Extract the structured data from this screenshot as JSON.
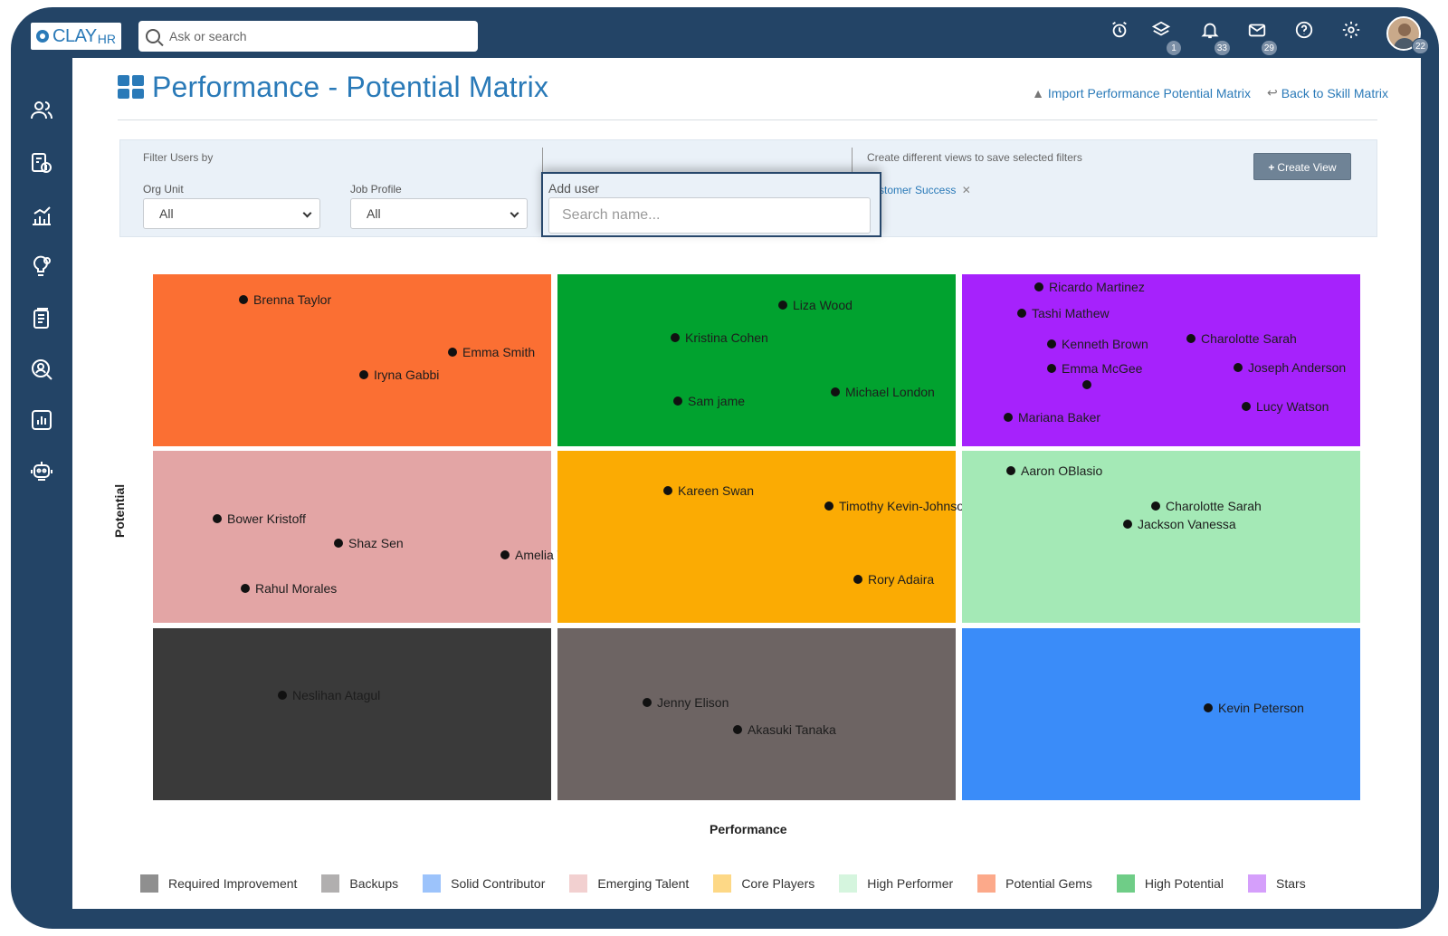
{
  "app": {
    "logo_text": "CLAY",
    "logo_sub": "HR",
    "search_placeholder": "Ask or search"
  },
  "top_icons": [
    {
      "name": "alarm-clock-icon",
      "badge": ""
    },
    {
      "name": "layers-icon",
      "badge": "1"
    },
    {
      "name": "bell-icon",
      "badge": "33"
    },
    {
      "name": "mail-icon",
      "badge": "29"
    },
    {
      "name": "help-icon",
      "badge": ""
    },
    {
      "name": "gear-icon",
      "badge": ""
    },
    {
      "name": "avatar",
      "badge": "22"
    }
  ],
  "sidebar_icons": [
    "users-icon",
    "money-report-icon",
    "bar-chart-icon",
    "lightbulb-gear-icon",
    "document-icon",
    "search-user-icon",
    "analytics-icon",
    "robot-icon"
  ],
  "page": {
    "title": "Performance - Potential Matrix",
    "import_link": "Import Performance Potential Matrix",
    "back_link": "Back to Skill Matrix"
  },
  "filters": {
    "heading": "Filter Users by",
    "org_unit_label": "Org Unit",
    "org_unit_value": "All",
    "job_profile_label": "Job Profile",
    "job_profile_value": "All",
    "views_text": "Create different views to save selected filters",
    "chip_text": "stomer Success",
    "create_view_label": "Create View"
  },
  "add_user": {
    "label": "Add user",
    "placeholder": "Search name..."
  },
  "axes": {
    "x": "Performance",
    "y": "Potential"
  },
  "matrix": {
    "cells": [
      {
        "id": "potential-gems",
        "color": "#fb6f33",
        "people": [
          "Brenna Taylor",
          "Emma Smith",
          "Iryna Gabbi"
        ]
      },
      {
        "id": "high-potential",
        "color": "#01a22f",
        "people": [
          "Liza Wood",
          "Kristina Cohen",
          "Sam jame",
          "Michael London"
        ]
      },
      {
        "id": "stars",
        "color": "#a622fc",
        "people": [
          "Ricardo Martinez",
          "Tashi Mathew",
          "Kenneth Brown",
          "Charolotte Sarah",
          "Emma McGee",
          "Joseph Anderson",
          "Lucy Watson",
          "Mariana Baker"
        ]
      },
      {
        "id": "emerging-talent",
        "color": "#e3a5a5",
        "people": [
          "Bower Kristoff",
          "Shaz Sen",
          "Amelia Wiggins",
          "Rahul Morales"
        ]
      },
      {
        "id": "core-players",
        "color": "#fbab03",
        "people": [
          "Kareen Swan",
          "Timothy Kevin-Johnson",
          "Rory Adaira"
        ]
      },
      {
        "id": "high-performer",
        "color": "#a4e9b6",
        "people": [
          "Aaron OBlasio",
          "Charolotte Sarah",
          "Jackson Vanessa"
        ]
      },
      {
        "id": "required-improvement",
        "color": "#3a3a3a",
        "people": [
          "Neslihan Atagul"
        ]
      },
      {
        "id": "backups",
        "color": "#6d6463",
        "people": [
          "Jenny Elison",
          "Akasuki Tanaka"
        ]
      },
      {
        "id": "solid-contributor",
        "color": "#3a8cf9",
        "people": [
          "Kevin Peterson"
        ]
      }
    ]
  },
  "legend": [
    {
      "label": "Required Improvement",
      "color": "#8f8f8f"
    },
    {
      "label": "Backups",
      "color": "#b1afaf"
    },
    {
      "label": "Solid Contributor",
      "color": "#9cc3fb"
    },
    {
      "label": "Emerging Talent",
      "color": "#f2d0d0"
    },
    {
      "label": "Core Players",
      "color": "#fdd886"
    },
    {
      "label": "High Performer",
      "color": "#d5f5de"
    },
    {
      "label": "Potential Gems",
      "color": "#fca98a"
    },
    {
      "label": "High Potential",
      "color": "#6fcd87"
    },
    {
      "label": "Stars",
      "color": "#d59ffb"
    }
  ]
}
